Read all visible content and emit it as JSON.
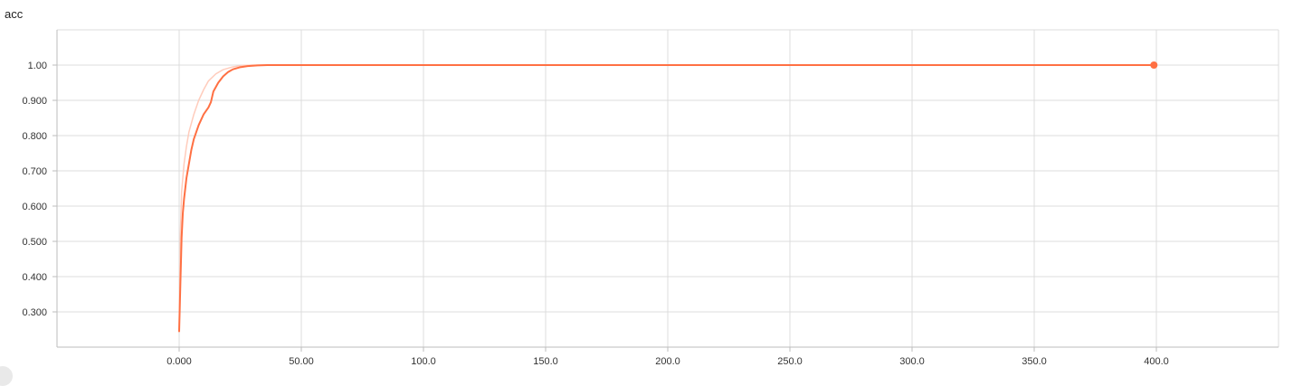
{
  "chart_data": {
    "type": "line",
    "title": "acc",
    "xlabel": "",
    "ylabel": "",
    "xlim": [
      -50,
      450
    ],
    "ylim": [
      0.2,
      1.1
    ],
    "x_ticks": [
      0,
      50,
      100,
      150,
      200,
      250,
      300,
      350,
      400
    ],
    "x_tick_labels": [
      "0.000",
      "50.00",
      "100.0",
      "150.0",
      "200.0",
      "250.0",
      "300.0",
      "350.0",
      "400.0"
    ],
    "y_ticks": [
      0.3,
      0.4,
      0.5,
      0.6,
      0.7,
      0.8,
      0.9,
      1.0
    ],
    "y_tick_labels": [
      "0.300",
      "0.400",
      "0.500",
      "0.600",
      "0.700",
      "0.800",
      "0.900",
      "1.00"
    ],
    "grid": true,
    "series": [
      {
        "role": "smoothed",
        "color": "#ff7043",
        "x": [
          0,
          0.5,
          1,
          1.5,
          2,
          3,
          4,
          5,
          6,
          8,
          10,
          12,
          13,
          14,
          16,
          18,
          20,
          22,
          25,
          28,
          32,
          36,
          40,
          50,
          100,
          200,
          300,
          399
        ],
        "values": [
          0.245,
          0.38,
          0.51,
          0.58,
          0.62,
          0.68,
          0.72,
          0.76,
          0.79,
          0.83,
          0.86,
          0.88,
          0.895,
          0.925,
          0.95,
          0.968,
          0.98,
          0.988,
          0.994,
          0.997,
          0.999,
          1.0,
          1.0,
          1.0,
          1.0,
          1.0,
          1.0,
          1.0
        ]
      },
      {
        "role": "raw",
        "color": "#ffccbc",
        "x": [
          0,
          0.5,
          1,
          2,
          3,
          4,
          6,
          8,
          10,
          12,
          15,
          18,
          22,
          26,
          30,
          35,
          40,
          100,
          399
        ],
        "values": [
          0.245,
          0.52,
          0.64,
          0.72,
          0.77,
          0.81,
          0.86,
          0.9,
          0.93,
          0.955,
          0.975,
          0.987,
          0.995,
          0.999,
          1.0,
          1.0,
          1.0,
          1.0,
          1.0
        ]
      }
    ],
    "last_point": {
      "x": 399,
      "y": 1.0
    }
  }
}
